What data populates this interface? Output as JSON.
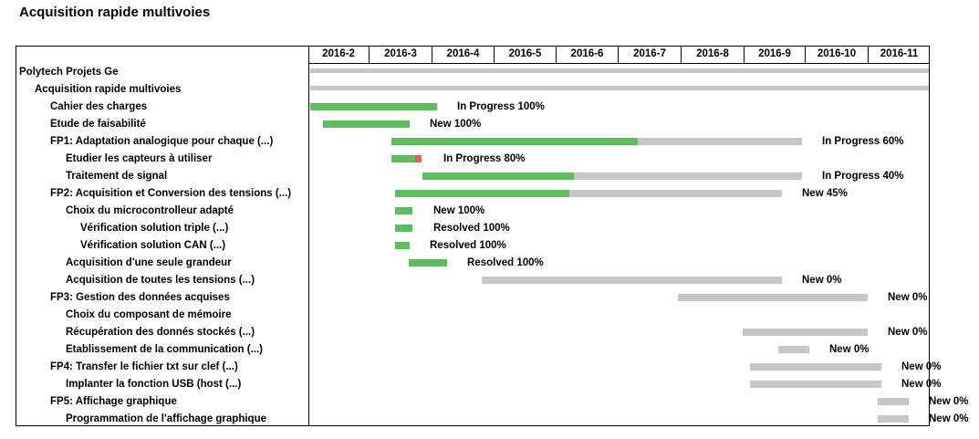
{
  "title": "Acquisition rapide multivoies",
  "months": [
    "2016-2",
    "2016-3",
    "2016-4",
    "2016-5",
    "2016-6",
    "2016-7",
    "2016-8",
    "2016-9",
    "2016-10",
    "2016-11"
  ],
  "tasks": [
    {
      "label": "Polytech Projets Ge",
      "indent": 0,
      "status": "",
      "progress": null
    },
    {
      "label": "Acquisition rapide multivoies",
      "indent": 1,
      "status": "",
      "progress": null
    },
    {
      "label": "Cahier des charges",
      "indent": 2,
      "status": "In Progress 100%",
      "progress": 1.0
    },
    {
      "label": "Etude de faisabilité",
      "indent": 2,
      "status": "New 100%",
      "progress": 1.0
    },
    {
      "label": "FP1: Adaptation analogique pour chaque  (...)",
      "indent": 2,
      "status": "In Progress 60%",
      "progress": 0.6
    },
    {
      "label": "Etudier les capteurs à utiliser",
      "indent": 3,
      "status": "In Progress 80%",
      "progress": 0.8
    },
    {
      "label": "Traitement de signal",
      "indent": 3,
      "status": "In Progress 40%",
      "progress": 0.4
    },
    {
      "label": "FP2: Acquisition et Conversion des tensions  (...)",
      "indent": 2,
      "status": "New 45%",
      "progress": 0.45
    },
    {
      "label": "Choix du microcontrolleur adapté",
      "indent": 3,
      "status": "New 100%",
      "progress": 1.0
    },
    {
      "label": "Vérification solution triple  (...)",
      "indent": 4,
      "status": "Resolved 100%",
      "progress": 1.0
    },
    {
      "label": "Vérification solution CAN  (...)",
      "indent": 4,
      "status": "Resolved 100%",
      "progress": 1.0
    },
    {
      "label": "Acquisition d'une seule grandeur",
      "indent": 3,
      "status": "Resolved 100%",
      "progress": 1.0
    },
    {
      "label": "Acquisition de toutes les tensions  (...)",
      "indent": 3,
      "status": "New 0%",
      "progress": 0.0
    },
    {
      "label": "FP3: Gestion des données acquises",
      "indent": 2,
      "status": "New 0%",
      "progress": 0.0
    },
    {
      "label": "Choix du composant de mémoire",
      "indent": 3,
      "status": "",
      "progress": null
    },
    {
      "label": "Récupération des donnés stockés  (...)",
      "indent": 3,
      "status": "New 0%",
      "progress": 0.0
    },
    {
      "label": "Etablissement de la communication  (...)",
      "indent": 3,
      "status": "New 0%",
      "progress": 0.0
    },
    {
      "label": "FP4: Transfer le fichier txt sur clef  (...)",
      "indent": 2,
      "status": "New 0%",
      "progress": 0.0
    },
    {
      "label": "Implanter la fonction USB (host  (...)",
      "indent": 3,
      "status": "New 0%",
      "progress": 0.0
    },
    {
      "label": "FP5: Affichage graphique",
      "indent": 2,
      "status": "New 0%",
      "progress": 0.0
    },
    {
      "label": "Programmation de l'affichage graphique",
      "indent": 3,
      "status": "New 0%",
      "progress": 0.0
    }
  ],
  "colors": {
    "done": "#5bbf5b",
    "remaining": "#c6c6c6",
    "late": "#e85b5b"
  }
}
